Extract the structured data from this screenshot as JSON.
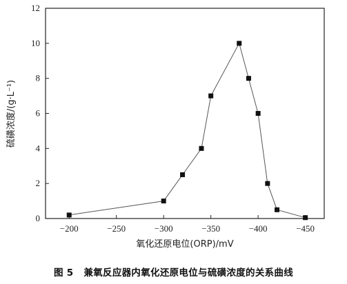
{
  "chart_data": {
    "type": "line",
    "xlabel": "氧化还原电位(ORP)/mV",
    "ylabel": "硫磺浓度/(g·L⁻¹)",
    "x_ticks": [
      -200,
      -250,
      -300,
      -350,
      -400,
      -450
    ],
    "x_tick_labels": [
      "−200",
      "−250",
      "−300",
      "−350",
      "−400",
      "−450"
    ],
    "y_ticks": [
      0,
      2,
      4,
      6,
      8,
      10,
      12
    ],
    "y_tick_labels": [
      "0",
      "2",
      "4",
      "6",
      "8",
      "10",
      "12"
    ],
    "xlim": [
      -175,
      -470
    ],
    "ylim": [
      0,
      12
    ],
    "x_axis_reversed": true,
    "series": [
      {
        "x": [
          -200,
          -300,
          -320,
          -340,
          -350,
          -380,
          -390,
          -400,
          -410,
          -420,
          -450
        ],
        "y": [
          0.2,
          1.0,
          2.5,
          4.0,
          7.0,
          10.0,
          8.0,
          6.0,
          2.0,
          0.5,
          0.05
        ]
      }
    ],
    "marker": "square",
    "line_color": "#555555",
    "marker_color": "#111111",
    "grid": false
  },
  "caption": {
    "label": "图 5",
    "text": "兼氧反应器内氧化还原电位与硫磺浓度的关系曲线"
  }
}
